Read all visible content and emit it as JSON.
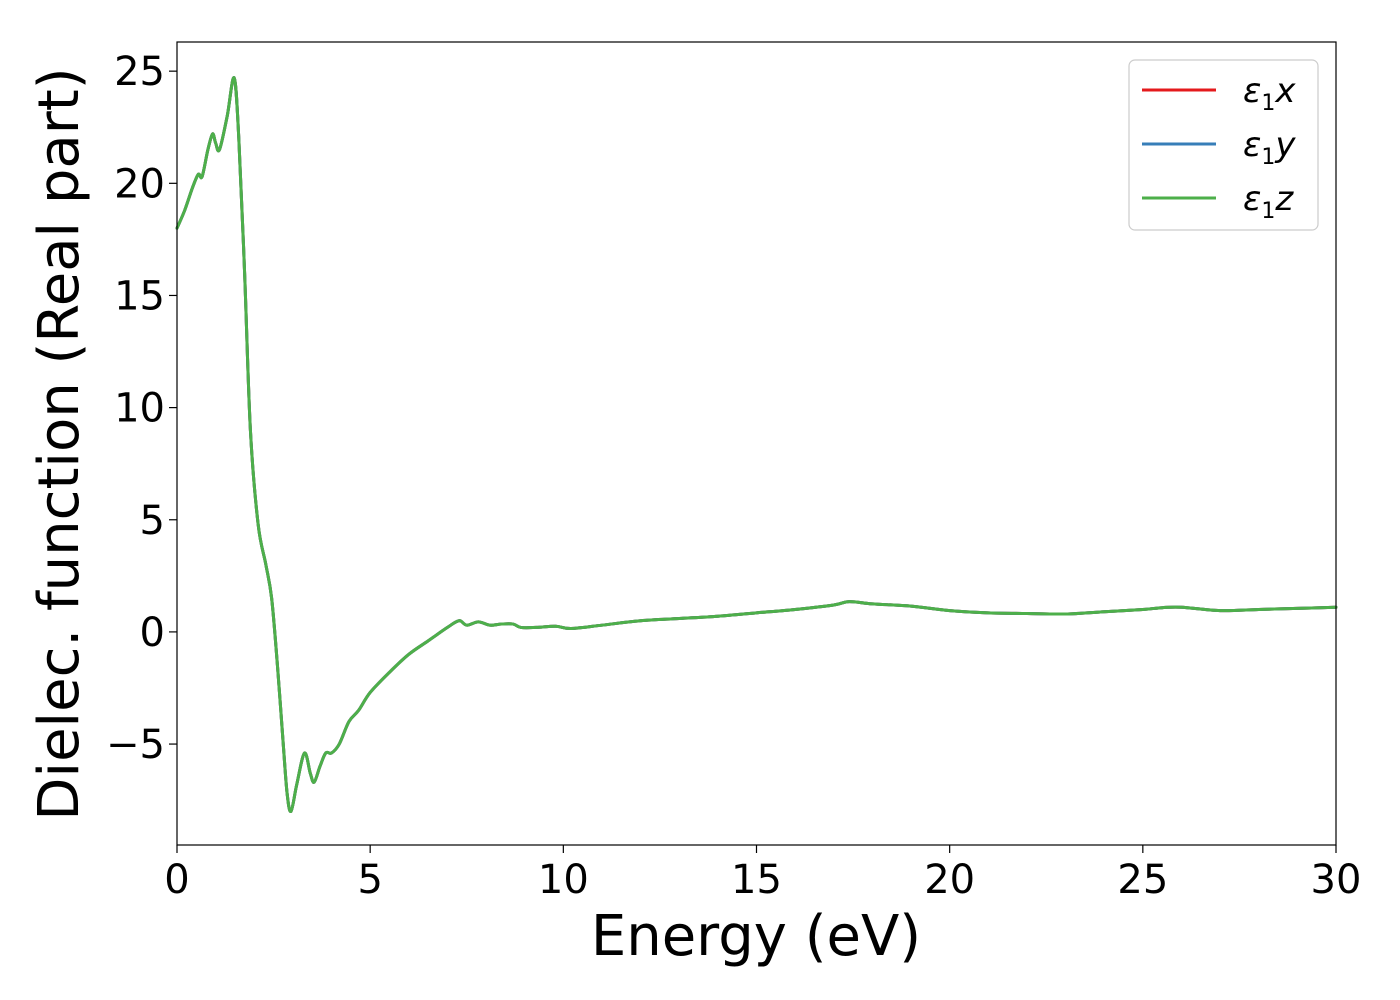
{
  "chart_data": {
    "type": "line",
    "title": "",
    "xlabel": "Energy (eV)",
    "ylabel": "Dielec. function (Real part)",
    "xlim": [
      0,
      30
    ],
    "ylim": [
      -9.5,
      26.3
    ],
    "xticks": [
      0,
      5,
      10,
      15,
      20,
      25,
      30
    ],
    "yticks": [
      -5,
      0,
      5,
      10,
      15,
      20,
      25
    ],
    "xtick_labels": [
      "0",
      "5",
      "10",
      "15",
      "20",
      "25",
      "30"
    ],
    "ytick_labels": [
      "−5",
      "0",
      "5",
      "10",
      "15",
      "20",
      "25"
    ],
    "grid": false,
    "legend": "top-right",
    "x": [
      0,
      0.2,
      0.4,
      0.55,
      0.65,
      0.8,
      0.92,
      1.0,
      1.1,
      1.3,
      1.48,
      1.6,
      1.75,
      1.9,
      2.1,
      2.3,
      2.45,
      2.6,
      2.75,
      2.85,
      2.95,
      3.1,
      3.3,
      3.45,
      3.55,
      3.7,
      3.85,
      4.0,
      4.2,
      4.45,
      4.7,
      5.0,
      5.5,
      6.0,
      6.5,
      7.0,
      7.3,
      7.5,
      7.8,
      8.1,
      8.4,
      8.7,
      8.9,
      9.3,
      9.8,
      10.2,
      11.0,
      12.0,
      13.0,
      14.0,
      15.0,
      16.0,
      17.0,
      17.4,
      18.0,
      19.0,
      20.0,
      21.0,
      22.0,
      23.0,
      24.0,
      25.0,
      25.5,
      26.0,
      27.0,
      28.0,
      29.0,
      30.0
    ],
    "series": [
      {
        "name": "ε1x",
        "color": "#e41a1c",
        "values": [
          18.0,
          18.8,
          19.8,
          20.4,
          20.3,
          21.5,
          22.2,
          21.8,
          21.5,
          23.0,
          24.7,
          22.0,
          16.0,
          9.0,
          4.8,
          3.0,
          1.5,
          -1.5,
          -5.0,
          -7.2,
          -8.0,
          -6.8,
          -5.4,
          -6.3,
          -6.7,
          -6.0,
          -5.4,
          -5.4,
          -5.0,
          -4.0,
          -3.5,
          -2.7,
          -1.8,
          -1.0,
          -0.4,
          0.2,
          0.5,
          0.3,
          0.45,
          0.3,
          0.35,
          0.35,
          0.2,
          0.2,
          0.25,
          0.15,
          0.3,
          0.5,
          0.6,
          0.7,
          0.85,
          1.0,
          1.2,
          1.35,
          1.25,
          1.15,
          0.95,
          0.85,
          0.82,
          0.8,
          0.9,
          1.0,
          1.08,
          1.1,
          0.95,
          1.0,
          1.05,
          1.1
        ]
      },
      {
        "name": "ε1y",
        "color": "#377eb8",
        "values": [
          18.0,
          18.8,
          19.8,
          20.4,
          20.3,
          21.5,
          22.2,
          21.8,
          21.5,
          23.0,
          24.7,
          22.0,
          16.0,
          9.0,
          4.8,
          3.0,
          1.5,
          -1.5,
          -5.0,
          -7.2,
          -8.0,
          -6.8,
          -5.4,
          -6.3,
          -6.7,
          -6.0,
          -5.4,
          -5.4,
          -5.0,
          -4.0,
          -3.5,
          -2.7,
          -1.8,
          -1.0,
          -0.4,
          0.2,
          0.5,
          0.3,
          0.45,
          0.3,
          0.35,
          0.35,
          0.2,
          0.2,
          0.25,
          0.15,
          0.3,
          0.5,
          0.6,
          0.7,
          0.85,
          1.0,
          1.2,
          1.35,
          1.25,
          1.15,
          0.95,
          0.85,
          0.82,
          0.8,
          0.9,
          1.0,
          1.08,
          1.1,
          0.95,
          1.0,
          1.05,
          1.1
        ]
      },
      {
        "name": "ε1z",
        "color": "#4daf4a",
        "values": [
          18.0,
          18.8,
          19.8,
          20.4,
          20.3,
          21.5,
          22.2,
          21.8,
          21.5,
          23.0,
          24.7,
          22.0,
          16.0,
          9.0,
          4.8,
          3.0,
          1.5,
          -1.5,
          -5.0,
          -7.2,
          -8.0,
          -6.8,
          -5.4,
          -6.3,
          -6.7,
          -6.0,
          -5.4,
          -5.4,
          -5.0,
          -4.0,
          -3.5,
          -2.7,
          -1.8,
          -1.0,
          -0.4,
          0.2,
          0.5,
          0.3,
          0.45,
          0.3,
          0.35,
          0.35,
          0.2,
          0.2,
          0.25,
          0.15,
          0.3,
          0.5,
          0.6,
          0.7,
          0.85,
          1.0,
          1.2,
          1.35,
          1.25,
          1.15,
          0.95,
          0.85,
          0.82,
          0.8,
          0.9,
          1.0,
          1.08,
          1.1,
          0.95,
          1.0,
          1.05,
          1.1
        ]
      }
    ],
    "legend_entries": [
      {
        "symbol": "ε",
        "subscript": "1",
        "axis": "x",
        "color": "#e41a1c"
      },
      {
        "symbol": "ε",
        "subscript": "1",
        "axis": "y",
        "color": "#377eb8"
      },
      {
        "symbol": "ε",
        "subscript": "1",
        "axis": "z",
        "color": "#4daf4a"
      }
    ]
  }
}
